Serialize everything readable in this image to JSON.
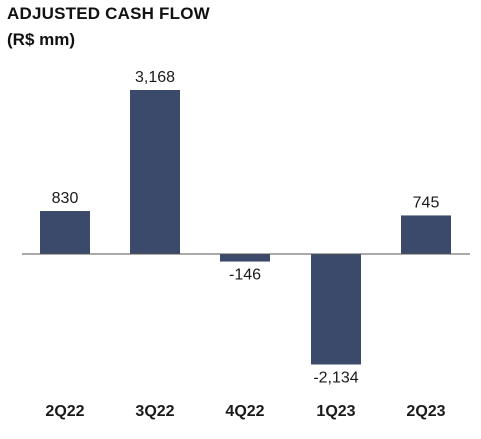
{
  "chart_data": {
    "type": "bar",
    "title": "ADJUSTED CASH FLOW",
    "subtitle": "(R$ mm)",
    "categories": [
      "2Q22",
      "3Q22",
      "4Q22",
      "1Q23",
      "2Q23"
    ],
    "values": [
      830,
      3168,
      -146,
      -2134,
      745
    ],
    "value_labels": [
      "830",
      "3,168",
      "-146",
      "-2,134",
      "745"
    ],
    "xlabel": "",
    "ylabel": "",
    "ylim": [
      -2134,
      3168
    ],
    "grid": false,
    "legend": "none",
    "bar_color": "#3b4a6b",
    "axis_color": "#555555"
  }
}
